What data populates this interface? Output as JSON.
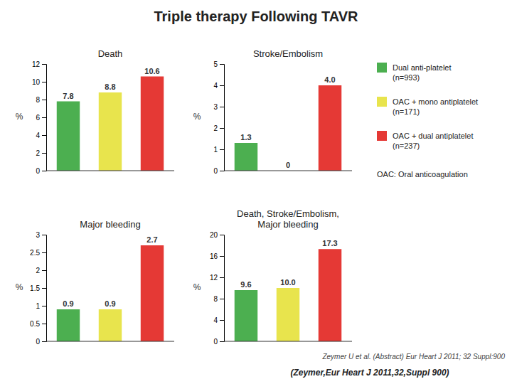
{
  "title": "Triple therapy Following TAVR",
  "subtitle": "(Zeymer,Eur Heart J 2011,32,Suppl 900)",
  "annotations": [
    "OAC: Oral anticoagulation",
    "Zeymer U et al. (Abstract) Eur Heart J 2011; 32 Suppl:900"
  ],
  "chart_data": [
    {
      "type": "bar",
      "title": "Death",
      "categories": [
        "Dual anti-platelet\n(n=993)",
        "OAC + mono antiplatelet\n(n=171)",
        "OAC + dual antiplatelet\n(n=237)"
      ],
      "values": [
        7.8,
        8.8,
        10.6
      ],
      "colors": [
        "#4caf50",
        "#e8e44d",
        "#e53935"
      ],
      "ylabel": "%",
      "ylim": [
        0,
        12
      ],
      "yticks": [
        0,
        2,
        4,
        6,
        8,
        10,
        12
      ],
      "data_labels": true,
      "tick_labels": "y"
    },
    {
      "type": "bar",
      "title": "Stroke/Embolism",
      "categories": [
        "Dual anti-platelet\n(n=993)",
        "OAC + mono antiplatelet\n(n=171)",
        "OAC + dual antiplatelet\n(n=237)"
      ],
      "values": [
        1.3,
        0,
        4.0
      ],
      "value_labels": [
        "1.3",
        "0",
        "4.0"
      ],
      "colors": [
        "#4caf50",
        "#e8e44d",
        "#e53935"
      ],
      "ylabel": "%",
      "ylim": [
        0,
        5
      ],
      "yticks": [
        0,
        1,
        2,
        3,
        4,
        5
      ],
      "data_labels": true,
      "tick_labels": "y",
      "legend": "right"
    },
    {
      "type": "bar",
      "title": "Major bleeding",
      "categories": [
        "Dual anti-platelet\n(n=993)",
        "OAC + mono antiplatelet\n(n=171)",
        "OAC + dual antiplatelet\n(n=237)"
      ],
      "values": [
        0.9,
        0.9,
        2.7
      ],
      "colors": [
        "#4caf50",
        "#e8e44d",
        "#e53935"
      ],
      "ylabel": "%",
      "ylim": [
        0,
        3
      ],
      "yticks": [
        0,
        0.5,
        1,
        1.5,
        2,
        2.5,
        3
      ],
      "data_labels": true,
      "tick_labels": "y"
    },
    {
      "type": "bar",
      "title": "Death, Stroke/Embolism,\nMajor bleeding",
      "categories": [
        "Dual anti-platelet\n(n=993)",
        "OAC + mono antiplatelet\n(n=171)",
        "OAC + dual antiplatelet\n(n=237)"
      ],
      "values": [
        9.6,
        10.0,
        17.3
      ],
      "value_labels": [
        "9.6",
        "10.0",
        "17.3"
      ],
      "colors": [
        "#4caf50",
        "#e8e44d",
        "#e53935"
      ],
      "ylabel": "%",
      "ylim": [
        0,
        20
      ],
      "yticks": [
        0,
        4,
        8,
        12,
        16,
        20
      ],
      "data_labels": true,
      "tick_labels": "y"
    }
  ]
}
